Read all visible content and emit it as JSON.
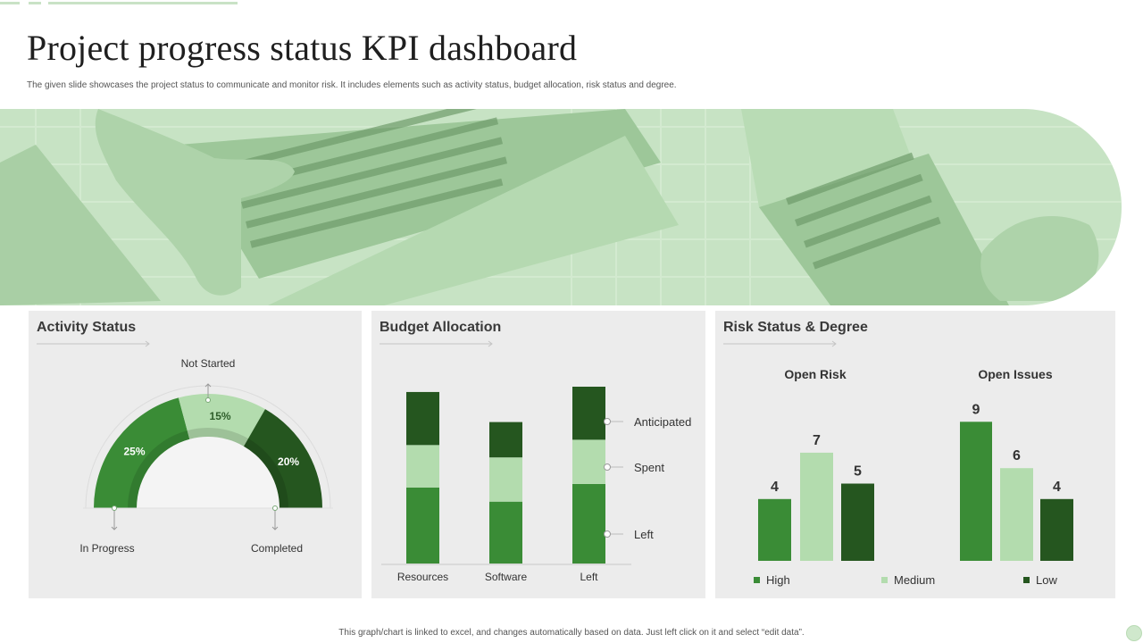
{
  "page": {
    "title": "Project progress status KPI dashboard",
    "subtitle": "The given slide showcases the project status  to communicate and monitor risk. It includes elements  such as activity status, budget allocation, risk status and degree.",
    "footer": "This graph/chart is linked to excel, and changes automatically based on data. Just left click on it and select “edit data”."
  },
  "colors": {
    "dark_green": "#25561f",
    "mid_green": "#3a8c36",
    "light_green": "#b3dcae",
    "panel_bg": "#ececec",
    "banner_bg": "#c7e3c4"
  },
  "panels": {
    "activity": {
      "title": "Activity  Status"
    },
    "budget": {
      "title": "Budget Allocation"
    },
    "risk": {
      "title": "Risk Status & Degree"
    }
  },
  "chart_data": [
    {
      "type": "pie",
      "title": "Activity  Status",
      "slices": [
        {
          "label": "In Progress",
          "value": 25,
          "display": "25%",
          "color": "#3a8c36"
        },
        {
          "label": "Not Started",
          "value": 15,
          "display": "15%",
          "color": "#b3dcae"
        },
        {
          "label": "Completed",
          "value": 20,
          "display": "20%",
          "color": "#25561f"
        }
      ]
    },
    {
      "type": "bar",
      "title": "Budget Allocation",
      "stacked": true,
      "categories": [
        "Resources",
        "Software",
        "Left"
      ],
      "series": [
        {
          "name": "Left",
          "values": [
            43,
            35,
            45
          ],
          "color": "#3a8c36"
        },
        {
          "name": "Spent",
          "values": [
            24,
            25,
            25
          ],
          "color": "#b3dcae"
        },
        {
          "name": "Anticipated",
          "values": [
            30,
            20,
            30
          ],
          "color": "#25561f"
        }
      ],
      "ylim": [
        0,
        100
      ],
      "legend_order": [
        "Anticipated",
        "Spent",
        "Left"
      ]
    },
    {
      "type": "bar",
      "title": "Open Risk",
      "categories": [
        "High",
        "Medium",
        "Low"
      ],
      "values": [
        4,
        7,
        5
      ],
      "colors": [
        "#3a8c36",
        "#b3dcae",
        "#25561f"
      ],
      "ylim": [
        0,
        9
      ]
    },
    {
      "type": "bar",
      "title": "Open Issues",
      "categories": [
        "High",
        "Medium",
        "Low"
      ],
      "values": [
        9,
        6,
        4
      ],
      "colors": [
        "#3a8c36",
        "#b3dcae",
        "#25561f"
      ],
      "ylim": [
        0,
        9
      ]
    }
  ]
}
